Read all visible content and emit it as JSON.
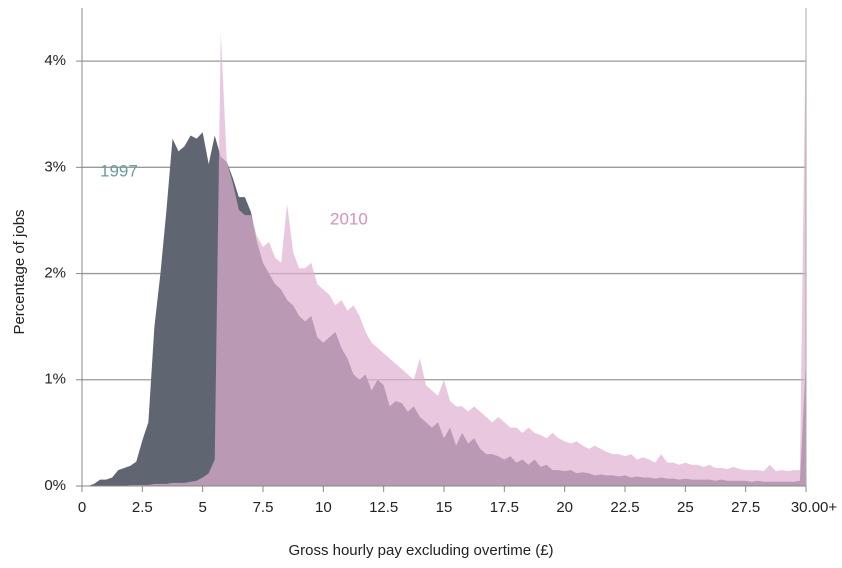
{
  "chart_data": {
    "type": "area",
    "x_label": "Gross hourly pay excluding overtime (£)",
    "y_label": "Percentage of jobs",
    "x": [
      0,
      0.25,
      0.5,
      0.75,
      1,
      1.25,
      1.5,
      1.75,
      2,
      2.25,
      2.5,
      2.75,
      3,
      3.25,
      3.5,
      3.75,
      4,
      4.25,
      4.5,
      4.75,
      5,
      5.25,
      5.5,
      5.75,
      6,
      6.25,
      6.5,
      6.75,
      7,
      7.25,
      7.5,
      7.75,
      8,
      8.25,
      8.5,
      8.75,
      9,
      9.25,
      9.5,
      9.75,
      10,
      10.25,
      10.5,
      10.75,
      11,
      11.25,
      11.5,
      11.75,
      12,
      12.25,
      12.5,
      12.75,
      13,
      13.25,
      13.5,
      13.75,
      14,
      14.25,
      14.5,
      14.75,
      15,
      15.25,
      15.5,
      15.75,
      16,
      16.25,
      16.5,
      16.75,
      17,
      17.25,
      17.5,
      17.75,
      18,
      18.25,
      18.5,
      18.75,
      19,
      19.25,
      19.5,
      19.75,
      20,
      20.25,
      20.5,
      20.75,
      21,
      21.25,
      21.5,
      21.75,
      22,
      22.25,
      22.5,
      22.75,
      23,
      23.25,
      23.5,
      23.75,
      24,
      24.25,
      24.5,
      24.75,
      25,
      25.25,
      25.5,
      25.75,
      26,
      26.25,
      26.5,
      26.75,
      27,
      27.25,
      27.5,
      27.75,
      28,
      28.25,
      28.5,
      28.75,
      29,
      29.25,
      29.5,
      29.75,
      30
    ],
    "series": [
      {
        "name": "1997",
        "color": "#5f6672",
        "label_color": "#6a9d9d",
        "values": [
          0,
          0,
          0.02,
          0.06,
          0.06,
          0.08,
          0.15,
          0.17,
          0.19,
          0.23,
          0.43,
          0.6,
          1.5,
          2.0,
          2.6,
          3.27,
          3.15,
          3.2,
          3.3,
          3.27,
          3.33,
          3.03,
          3.3,
          3.1,
          3.05,
          2.9,
          2.72,
          2.72,
          2.58,
          2.3,
          2.1,
          2.0,
          1.9,
          1.85,
          1.75,
          1.7,
          1.6,
          1.55,
          1.6,
          1.4,
          1.35,
          1.4,
          1.45,
          1.3,
          1.2,
          1.05,
          1.0,
          1.05,
          0.9,
          1.0,
          0.95,
          0.75,
          0.8,
          0.78,
          0.7,
          0.75,
          0.65,
          0.6,
          0.55,
          0.6,
          0.45,
          0.55,
          0.38,
          0.5,
          0.4,
          0.45,
          0.35,
          0.3,
          0.3,
          0.28,
          0.25,
          0.28,
          0.22,
          0.25,
          0.2,
          0.25,
          0.18,
          0.2,
          0.15,
          0.15,
          0.14,
          0.15,
          0.12,
          0.13,
          0.12,
          0.1,
          0.11,
          0.1,
          0.1,
          0.09,
          0.1,
          0.08,
          0.09,
          0.08,
          0.08,
          0.07,
          0.08,
          0.07,
          0.07,
          0.06,
          0.07,
          0.06,
          0.06,
          0.06,
          0.06,
          0.05,
          0.06,
          0.05,
          0.05,
          0.05,
          0.05,
          0.04,
          0.05,
          0.04,
          0.04,
          0.04,
          0.04,
          0.04,
          0.04,
          0.05,
          1.2
        ]
      },
      {
        "name": "2010",
        "color": "#e0afd0",
        "label_color": "#d68fc0",
        "values": [
          0,
          0,
          0,
          0,
          0,
          0,
          0,
          0,
          0.01,
          0.01,
          0.01,
          0.01,
          0.02,
          0.02,
          0.02,
          0.03,
          0.03,
          0.03,
          0.04,
          0.05,
          0.08,
          0.12,
          0.25,
          4.27,
          3.05,
          2.85,
          2.6,
          2.55,
          2.55,
          2.35,
          2.25,
          2.3,
          2.15,
          2.1,
          2.65,
          2.2,
          2.05,
          2.05,
          2.1,
          1.9,
          1.85,
          1.8,
          1.7,
          1.75,
          1.65,
          1.7,
          1.6,
          1.45,
          1.35,
          1.3,
          1.25,
          1.2,
          1.15,
          1.1,
          1.05,
          1.0,
          1.2,
          0.95,
          0.9,
          0.85,
          1.0,
          0.8,
          0.75,
          0.75,
          0.7,
          0.75,
          0.7,
          0.65,
          0.6,
          0.65,
          0.6,
          0.55,
          0.55,
          0.5,
          0.55,
          0.5,
          0.48,
          0.45,
          0.5,
          0.45,
          0.42,
          0.4,
          0.42,
          0.38,
          0.35,
          0.38,
          0.35,
          0.32,
          0.3,
          0.3,
          0.28,
          0.3,
          0.25,
          0.27,
          0.25,
          0.22,
          0.3,
          0.22,
          0.22,
          0.2,
          0.22,
          0.2,
          0.2,
          0.18,
          0.2,
          0.17,
          0.17,
          0.16,
          0.18,
          0.16,
          0.15,
          0.15,
          0.15,
          0.14,
          0.2,
          0.14,
          0.15,
          0.14,
          0.15,
          0.15,
          4.5
        ]
      }
    ],
    "xlim": [
      0,
      30
    ],
    "xticks": [
      0,
      2.5,
      5,
      7.5,
      10,
      12.5,
      15,
      17.5,
      20,
      22.5,
      25,
      27.5,
      {
        "value": 30,
        "label": "30.00+"
      }
    ],
    "ylim": [
      0,
      4.5
    ],
    "yticks": [
      {
        "value": 0,
        "label": "0%"
      },
      {
        "value": 1,
        "label": "1%"
      },
      {
        "value": 2,
        "label": "2%"
      },
      {
        "value": 3,
        "label": "3%"
      },
      {
        "value": 4,
        "label": "4%"
      }
    ],
    "grid": true,
    "series_label_positions": [
      "left",
      "middle"
    ]
  }
}
